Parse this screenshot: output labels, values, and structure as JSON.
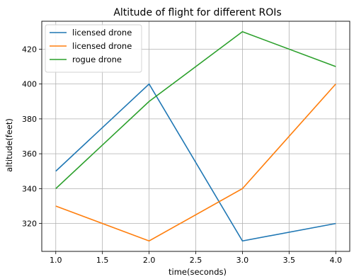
{
  "chart_data": {
    "type": "line",
    "title": "Altitude of flight for different ROIs",
    "xlabel": "time(seconds)",
    "ylabel": "altitude(feet)",
    "x": [
      1.0,
      2.0,
      3.0,
      4.0
    ],
    "xlim": [
      0.85,
      4.15
    ],
    "ylim": [
      304,
      436
    ],
    "xticks": [
      1.0,
      1.5,
      2.0,
      2.5,
      3.0,
      3.5,
      4.0
    ],
    "xtick_labels": [
      "1.0",
      "1.5",
      "2.0",
      "2.5",
      "3.0",
      "3.5",
      "4.0"
    ],
    "yticks": [
      320,
      340,
      360,
      380,
      400,
      420
    ],
    "ytick_labels": [
      "320",
      "340",
      "360",
      "380",
      "400",
      "420"
    ],
    "grid": true,
    "legend_position": "top-left",
    "series": [
      {
        "name": "licensed drone",
        "color": "#1f77b4",
        "values": [
          350,
          400,
          310,
          320
        ]
      },
      {
        "name": "licensed drone",
        "color": "#ff7f0e",
        "values": [
          330,
          310,
          340,
          400
        ]
      },
      {
        "name": "rogue drone",
        "color": "#2ca02c",
        "values": [
          340,
          390,
          430,
          410
        ]
      }
    ]
  }
}
